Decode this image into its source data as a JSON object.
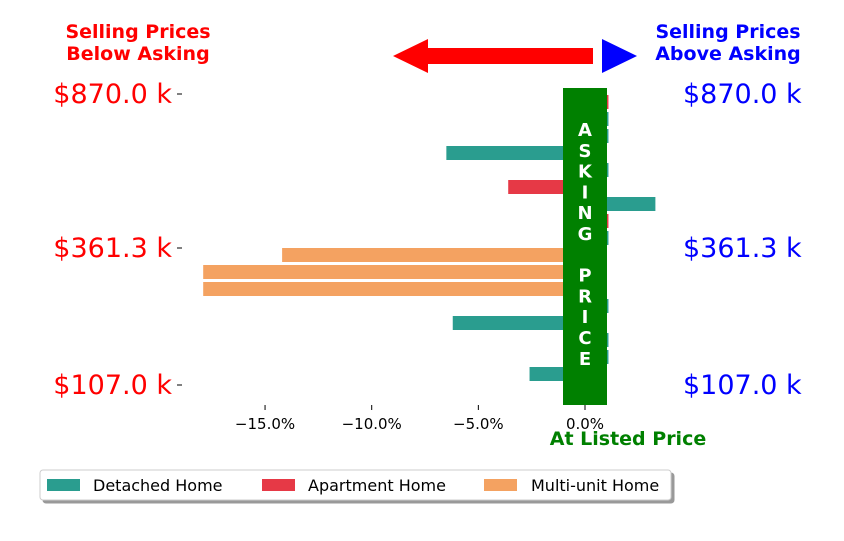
{
  "chart_data": {
    "type": "bar",
    "orientation": "horizontal",
    "header_left": [
      "Selling Prices",
      "Below Asking"
    ],
    "header_right": [
      "Selling Prices",
      "Above Asking"
    ],
    "center_label": "At Listed Price",
    "center_bar_label": [
      "A",
      "S",
      "K",
      "I",
      "N",
      "G",
      "",
      "P",
      "R",
      "I",
      "C",
      "E"
    ],
    "price_labels": [
      "$870.0 k",
      "$361.3 k",
      "$107.0 k"
    ],
    "xlim": [
      -18.5,
      5.5
    ],
    "xticks": [
      -15,
      -10,
      -5,
      0
    ],
    "xtick_labels": [
      "−15.0%",
      "−10.0%",
      "−5.0%",
      "0.0%"
    ],
    "legend": [
      "Detached Home",
      "Apartment Home",
      "Multi-unit Home"
    ],
    "colors": {
      "Detached Home": "#2a9d8f",
      "Apartment Home": "#e63946",
      "Multi-unit Home": "#f4a261",
      "asking_band": "#008000",
      "below": "#ff0000",
      "above": "#0000ff"
    },
    "bars": [
      {
        "type": "Apartment Home",
        "value": 1.1
      },
      {
        "type": "Detached Home",
        "value": 1.1
      },
      {
        "type": "Detached Home",
        "value": 1.1
      },
      {
        "type": "Detached Home",
        "value": -6.5
      },
      {
        "type": "Detached Home",
        "value": 1.1
      },
      {
        "type": "Apartment Home",
        "value": -3.6
      },
      {
        "type": "Detached Home",
        "value": 3.3
      },
      {
        "type": "Apartment Home",
        "value": 1.1
      },
      {
        "type": "Detached Home",
        "value": 1.1
      },
      {
        "type": "Multi-unit Home",
        "value": -14.2
      },
      {
        "type": "Multi-unit Home",
        "value": -17.9
      },
      {
        "type": "Multi-unit Home",
        "value": -17.9
      },
      {
        "type": "Detached Home",
        "value": 1.1
      },
      {
        "type": "Detached Home",
        "value": -6.2
      },
      {
        "type": "Detached Home",
        "value": 1.1
      },
      {
        "type": "Detached Home",
        "value": 1.1
      },
      {
        "type": "Detached Home",
        "value": -2.6
      }
    ]
  }
}
